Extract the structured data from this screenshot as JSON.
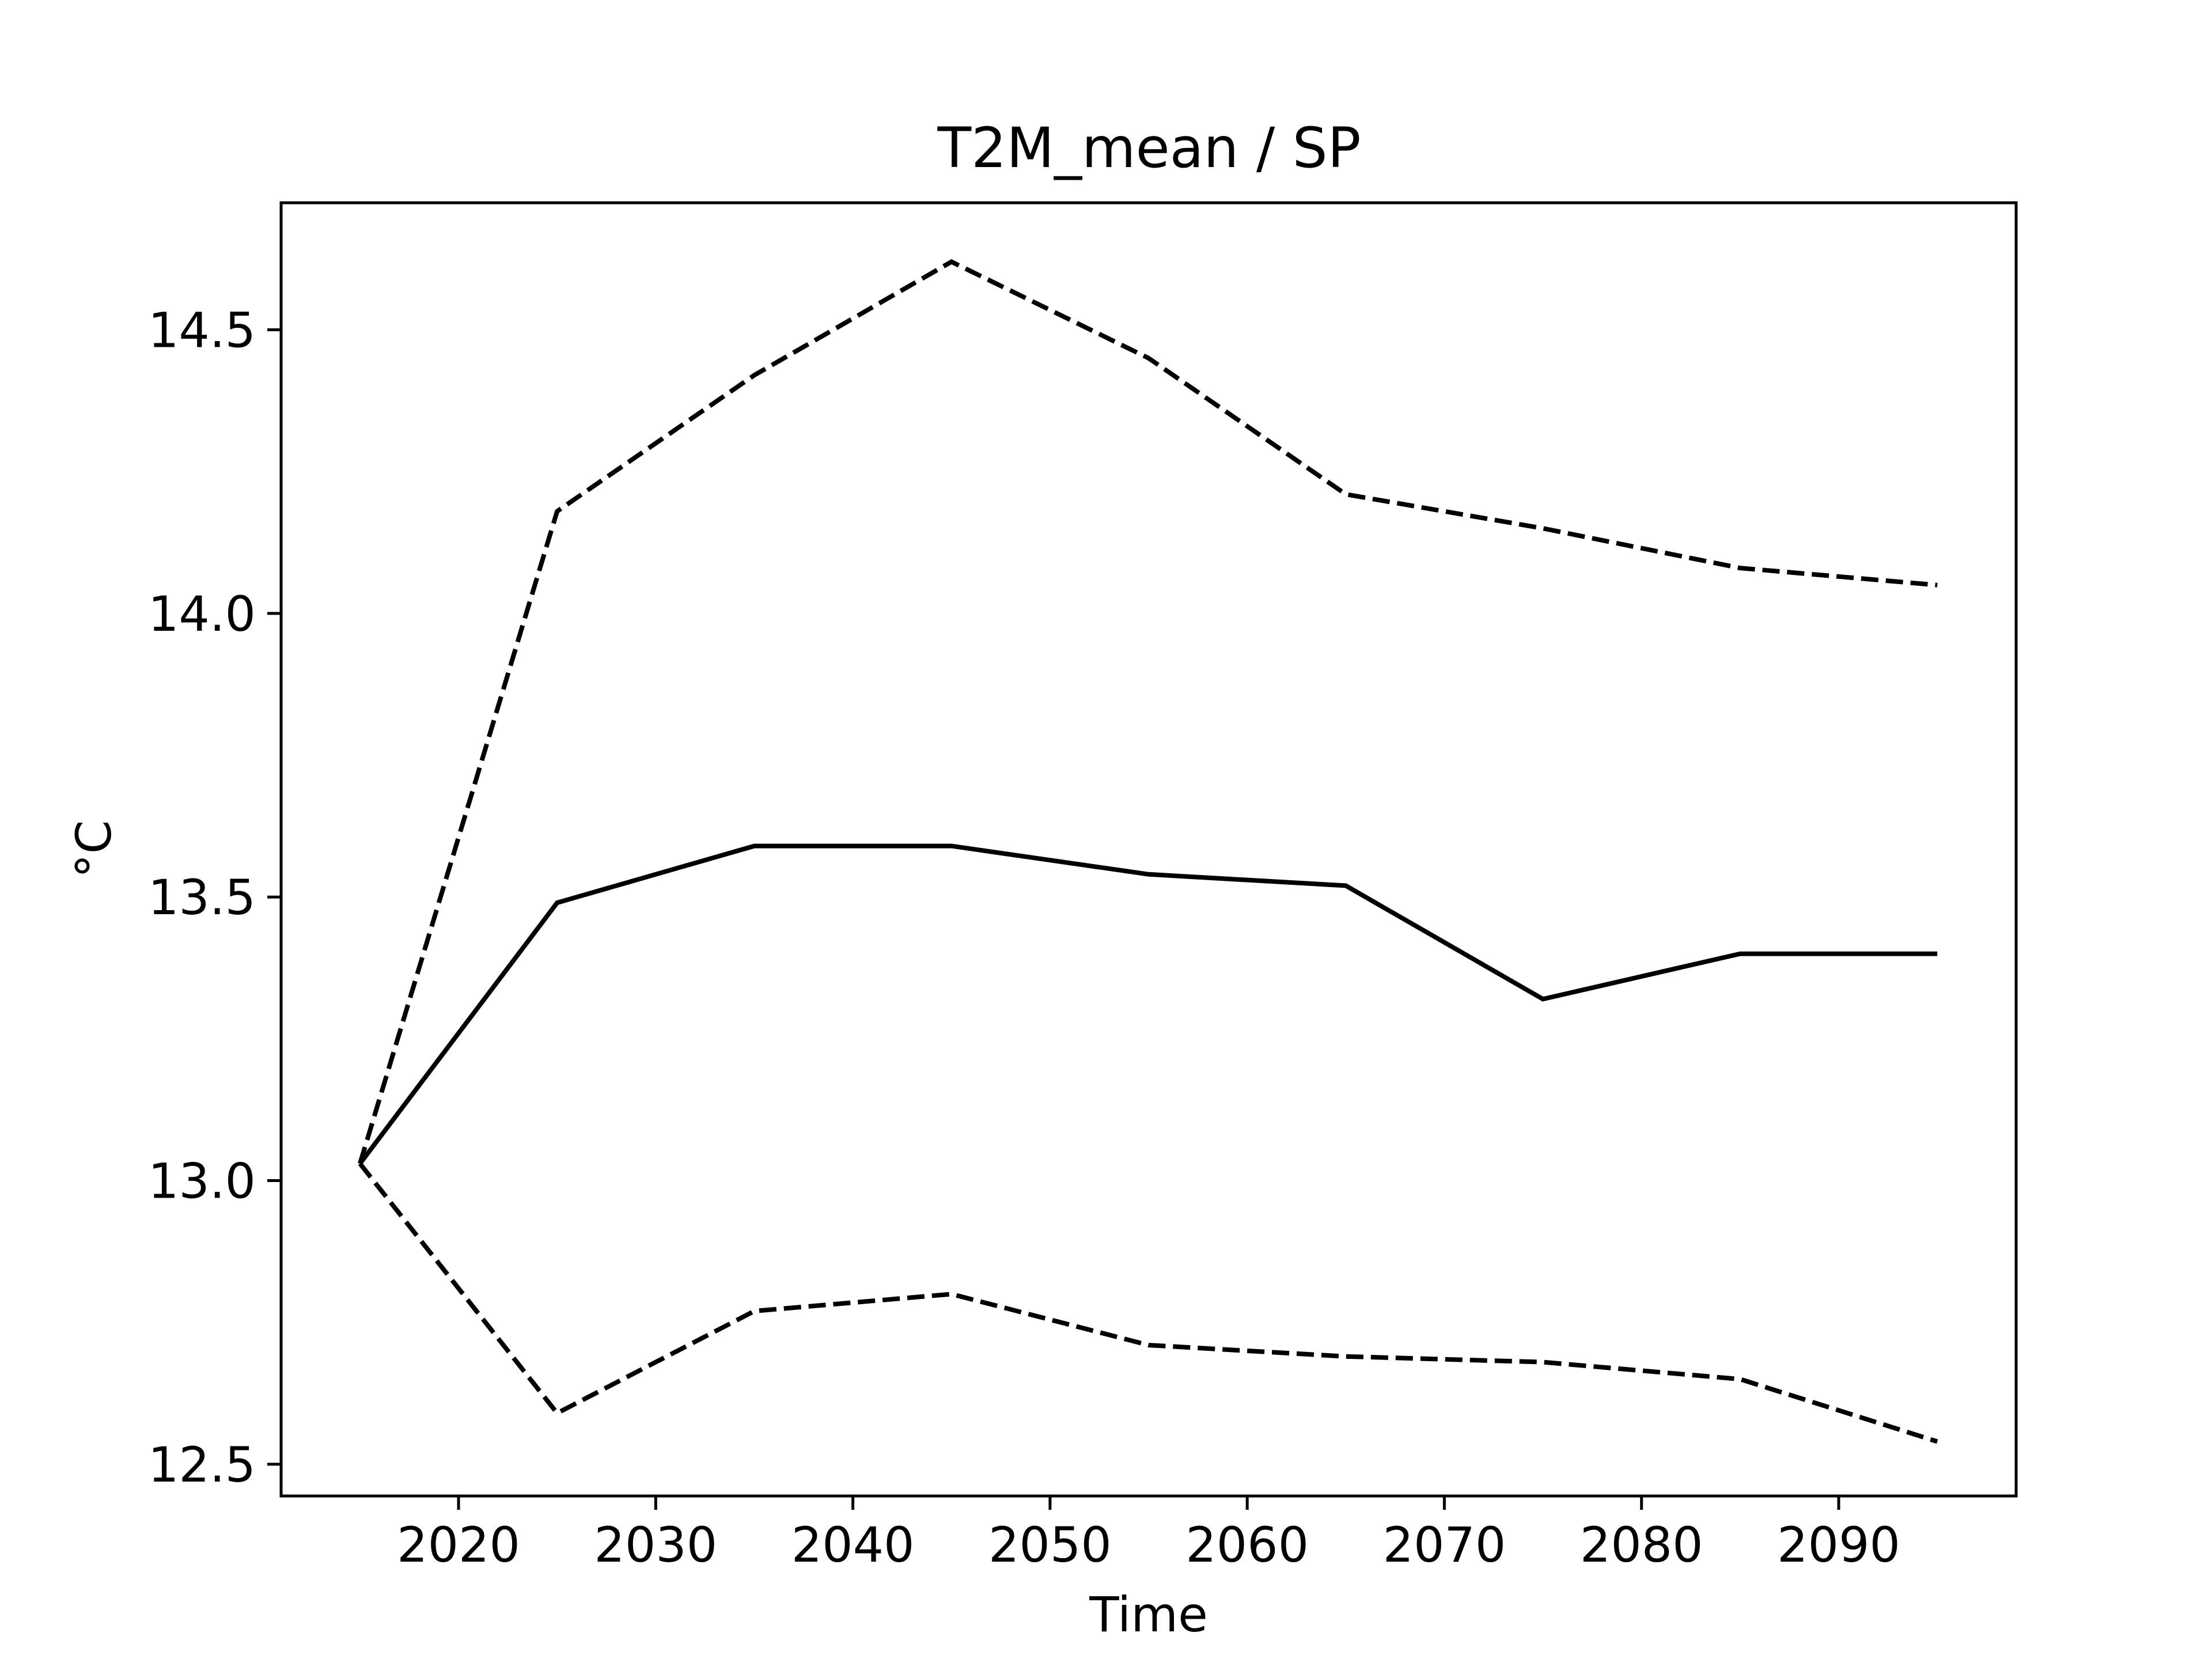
{
  "chart_data": {
    "type": "line",
    "title": "T2M_mean / SP",
    "xlabel": "Time",
    "ylabel": "°C",
    "x": [
      2015,
      2025,
      2035,
      2045,
      2055,
      2065,
      2075,
      2085,
      2095
    ],
    "xlim": [
      2011.0,
      2099.0
    ],
    "ylim": [
      12.444,
      14.724
    ],
    "xticks": [
      2020,
      2030,
      2040,
      2050,
      2060,
      2070,
      2080,
      2090
    ],
    "xtick_labels": [
      "2020",
      "2030",
      "2040",
      "2050",
      "2060",
      "2070",
      "2080",
      "2090"
    ],
    "yticks": [
      12.5,
      13.0,
      13.5,
      14.0,
      14.5
    ],
    "ytick_labels": [
      "12.5",
      "13.0",
      "13.5",
      "14.0",
      "14.5"
    ],
    "grid": false,
    "legend": "none",
    "series": [
      {
        "style": "dashed",
        "color": "#000000",
        "values": [
          13.03,
          14.18,
          14.42,
          14.62,
          14.45,
          14.21,
          14.15,
          14.08,
          14.05
        ]
      },
      {
        "style": "solid",
        "color": "#000000",
        "values": [
          13.03,
          13.49,
          13.59,
          13.59,
          13.54,
          13.52,
          13.32,
          13.4,
          13.4
        ]
      },
      {
        "style": "dashed",
        "color": "#000000",
        "values": [
          13.03,
          12.59,
          12.77,
          12.8,
          12.71,
          12.69,
          12.68,
          12.65,
          12.54
        ]
      }
    ]
  }
}
